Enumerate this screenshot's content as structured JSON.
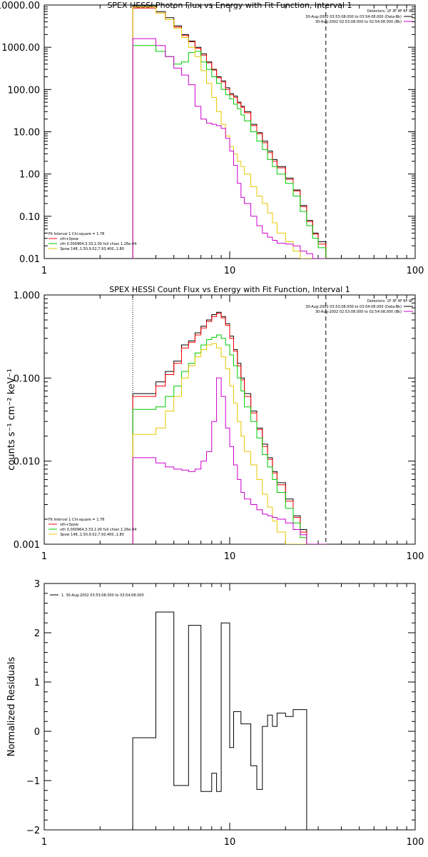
{
  "chart_data": [
    {
      "type": "line",
      "title": "SPEX HESSI Photon Flux vs Energy with Fit Function, Interval 1",
      "xscale": "log",
      "yscale": "log",
      "xlim": [
        1,
        100
      ],
      "ylim": [
        0.01,
        10000
      ],
      "x_ticks": [
        "1",
        "10",
        "100"
      ],
      "y_ticks": [
        "0.01",
        "0.10",
        "1.00",
        "10.00",
        "100.00",
        "1000.00",
        "10000.00"
      ],
      "edges": [
        3,
        3.5,
        4,
        4.5,
        5,
        5.5,
        6,
        6.5,
        7,
        7.5,
        8,
        8.5,
        9,
        9.5,
        10,
        10.5,
        11,
        11.5,
        12,
        13,
        14,
        15,
        16,
        17,
        18,
        20,
        22,
        24,
        26,
        28,
        30,
        33
      ],
      "series": [
        {
          "color": "#000000",
          "values": [
            9500,
            9500,
            7000,
            5000,
            3200,
            2000,
            1400,
            1000,
            700,
            450,
            300,
            200,
            160,
            110,
            80,
            70,
            50,
            40,
            30,
            15,
            9.5,
            6,
            3.5,
            2.2,
            1.5,
            0.8,
            0.42,
            0.18,
            0.08,
            0.04,
            0.025
          ]
        },
        {
          "color": "#ff0000",
          "values": [
            8500,
            8500,
            6500,
            4500,
            3000,
            1900,
            1350,
            950,
            650,
            430,
            290,
            190,
            150,
            100,
            75,
            65,
            48,
            38,
            28,
            14,
            9,
            5.5,
            3.2,
            2,
            1.4,
            0.75,
            0.4,
            0.17,
            0.075,
            0.038,
            0.022
          ]
        },
        {
          "color": "#00cc00",
          "values": [
            1100,
            1100,
            800,
            600,
            400,
            450,
            750,
            800,
            450,
            300,
            200,
            140,
            100,
            75,
            60,
            45,
            35,
            25,
            18,
            10,
            6,
            3.8,
            2.2,
            1.5,
            1,
            0.6,
            0.3,
            0.13,
            0.06,
            0.03,
            0.018
          ]
        },
        {
          "color": "#e6c800",
          "values": [
            9000,
            9000,
            6500,
            4500,
            2800,
            1700,
            1000,
            600,
            280,
            140,
            65,
            30,
            15,
            8,
            4.5,
            3,
            2,
            1.5,
            1,
            0.5,
            0.3,
            0.2,
            0.12,
            0.07,
            0.04,
            0.025,
            0.015,
            0.01,
            0.01,
            0.01,
            0.01
          ]
        },
        {
          "color": "#cc00cc",
          "values": [
            1600,
            1600,
            1100,
            600,
            320,
            220,
            130,
            40,
            20,
            16,
            15,
            14,
            12,
            7,
            3.5,
            1.6,
            0.6,
            0.28,
            0.2,
            0.1,
            0.06,
            0.04,
            0.032,
            0.027,
            0.023,
            0.022,
            0.02,
            0.015,
            0.013,
            0.01,
            0.01
          ]
        }
      ],
      "legend_right": {
        "detectors": "Detectors: 1F 3F 4F 6F 9F",
        "entries": [
          {
            "text": "30-Aug-2002 03:53:08.000 to 03:54:08.000 (Data-Bk)",
            "color": "#000000"
          },
          {
            "text": "30-Aug-2002 02:53:08.000 to 02:54:08.000 (Bk)",
            "color": "#cc00cc"
          }
        ]
      },
      "legend_left": {
        "header": "Fit Interval 1    Chi-square = 1.78",
        "entries": [
          {
            "text": "vth+3pow",
            "color": "#ff0000"
          },
          {
            "text": "vth 0.000964,3.33,1.00   full chian 1.26e-04",
            "color": "#00cc00"
          },
          {
            "text": "3pow 148.,1.50,9.02,7.93,400.,1.80",
            "color": "#e6c800"
          }
        ]
      },
      "fit_range": [
        3,
        33
      ]
    },
    {
      "type": "line",
      "title": "SPEX HESSI Count Flux vs Energy with Fit Function, Interval 1",
      "ylabel": "counts s⁻¹ cm⁻² keV⁻¹",
      "xscale": "log",
      "yscale": "log",
      "xlim": [
        1,
        100
      ],
      "ylim": [
        0.001,
        1
      ],
      "x_ticks": [
        "1",
        "10",
        "100"
      ],
      "y_ticks": [
        "0.001",
        "0.010",
        "0.100",
        "1.000"
      ],
      "edges": [
        3,
        3.5,
        4,
        4.5,
        5,
        5.5,
        6,
        6.5,
        7,
        7.5,
        8,
        8.5,
        9,
        9.5,
        10,
        10.5,
        11,
        11.5,
        12,
        13,
        14,
        15,
        16,
        17,
        18,
        20,
        22,
        24,
        26,
        28,
        30,
        33
      ],
      "series": [
        {
          "color": "#000000",
          "values": [
            0.065,
            0.065,
            0.09,
            0.12,
            0.16,
            0.25,
            0.28,
            0.35,
            0.42,
            0.5,
            0.58,
            0.62,
            0.55,
            0.45,
            0.32,
            0.22,
            0.15,
            0.1,
            0.065,
            0.04,
            0.025,
            0.016,
            0.011,
            0.0075,
            0.0055,
            0.0035,
            0.0022,
            0.0015,
            0.001,
            0.001,
            0.001
          ]
        },
        {
          "color": "#ff0000",
          "values": [
            0.06,
            0.06,
            0.08,
            0.11,
            0.15,
            0.23,
            0.27,
            0.33,
            0.4,
            0.48,
            0.55,
            0.6,
            0.53,
            0.43,
            0.3,
            0.21,
            0.14,
            0.095,
            0.06,
            0.038,
            0.024,
            0.015,
            0.0105,
            0.0072,
            0.0052,
            0.0033,
            0.0021,
            0.0014,
            0.001,
            0.001,
            0.001
          ]
        },
        {
          "color": "#00cc00",
          "values": [
            0.042,
            0.042,
            0.045,
            0.06,
            0.08,
            0.12,
            0.15,
            0.2,
            0.25,
            0.29,
            0.31,
            0.33,
            0.3,
            0.25,
            0.19,
            0.14,
            0.1,
            0.07,
            0.045,
            0.03,
            0.019,
            0.012,
            0.0085,
            0.006,
            0.0042,
            0.0027,
            0.0018,
            0.0012,
            0.001,
            0.001,
            0.001
          ]
        },
        {
          "color": "#e6c800",
          "values": [
            0.021,
            0.021,
            0.025,
            0.04,
            0.06,
            0.1,
            0.14,
            0.18,
            0.22,
            0.25,
            0.26,
            0.23,
            0.18,
            0.13,
            0.08,
            0.05,
            0.03,
            0.02,
            0.013,
            0.009,
            0.006,
            0.004,
            0.0028,
            0.0019,
            0.0014,
            0.001,
            0.001,
            0.001,
            0.001,
            0.001,
            0.001
          ]
        },
        {
          "color": "#cc00cc",
          "values": [
            0.011,
            0.011,
            0.0095,
            0.0085,
            0.008,
            0.0078,
            0.0075,
            0.008,
            0.01,
            0.013,
            0.03,
            0.1,
            0.06,
            0.025,
            0.015,
            0.009,
            0.006,
            0.0042,
            0.0035,
            0.003,
            0.0026,
            0.0023,
            0.0022,
            0.0021,
            0.002,
            0.0018,
            0.0015,
            0.0013,
            0.001,
            0.001,
            0.001
          ]
        }
      ],
      "legend_right": {
        "detectors": "Detectors: 1F 3F 4F 6F 9F",
        "entries": [
          {
            "text": "30-Aug-2002 03:53:08.000 to 03:54:08.000 (Data-Bk)",
            "color": "#000000"
          },
          {
            "text": "30-Aug-2002 02:53:08.000 to 02:54:08.000 (Bk)",
            "color": "#cc00cc"
          }
        ]
      },
      "legend_left": {
        "header": "Fit Interval 1    Chi-square = 1.78",
        "entries": [
          {
            "text": "vth+3pow",
            "color": "#ff0000"
          },
          {
            "text": "vth 0.000964,3.33,1.00   full chian 1.26e-04",
            "color": "#00cc00"
          },
          {
            "text": "3pow 148.,1.50,9.02,7.93,400.,1.80",
            "color": "#e6c800"
          }
        ]
      },
      "fit_range": [
        3,
        33
      ]
    },
    {
      "type": "line",
      "title": "",
      "ylabel": "Normalized Residuals",
      "xscale": "log",
      "yscale": "linear",
      "xlim": [
        1,
        100
      ],
      "ylim": [
        -2,
        3
      ],
      "x_ticks": [
        "1",
        "10",
        "100"
      ],
      "y_ticks": [
        "-2",
        "-1",
        "0",
        "1",
        "2",
        "3"
      ],
      "edges": [
        3,
        3.5,
        4,
        4.5,
        5,
        5.5,
        6,
        6.5,
        7,
        7.5,
        8,
        8.5,
        9,
        9.5,
        10,
        10.5,
        11,
        11.5,
        12,
        13,
        14,
        15,
        16,
        17,
        18,
        20,
        22,
        24,
        26,
        28,
        30,
        33
      ],
      "series": [
        {
          "color": "#000000",
          "values": [
            -0.13,
            -0.13,
            2.42,
            2.42,
            -1.1,
            -1.1,
            2.15,
            2.15,
            -1.22,
            -1.22,
            -0.85,
            -1.22,
            2.2,
            2.2,
            -0.33,
            0.4,
            0.4,
            0.15,
            0.15,
            -0.7,
            -1.18,
            0.1,
            0.33,
            0.1,
            0.37,
            0.3,
            0.44,
            0.44,
            -2,
            -2,
            -2
          ]
        }
      ],
      "legend_right": null,
      "legend_left": {
        "header": "",
        "entries": [
          {
            "text": "1. 30-Aug-2002 03:53:08.000 to 03:54:08.000",
            "color": "#000000"
          }
        ]
      },
      "fit_range": null
    }
  ]
}
